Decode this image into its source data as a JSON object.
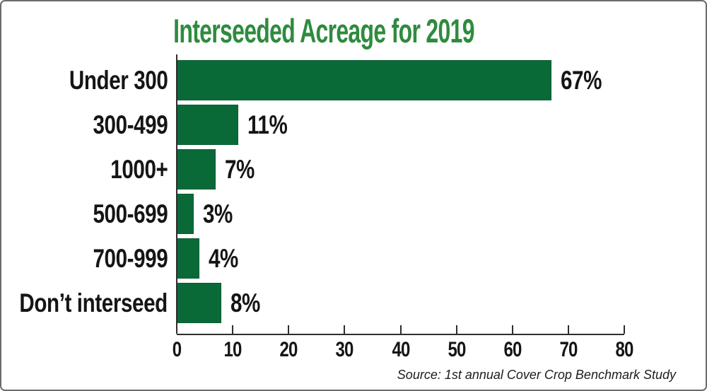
{
  "frame": {
    "background": "#ffffff",
    "border_color": "#6b6b6b"
  },
  "chart_data": {
    "type": "bar",
    "orientation": "horizontal",
    "title": "Interseeded Acreage for 2019",
    "title_color": "#2e8b3e",
    "bar_color": "#096a38",
    "categories": [
      "Under 300",
      "300-499",
      "1000+",
      "500-699",
      "700-999",
      "Don’t interseed"
    ],
    "values": [
      67,
      11,
      7,
      3,
      4,
      8
    ],
    "value_labels": [
      "67%",
      "11%",
      "7%",
      "3%",
      "4%",
      "8%"
    ],
    "xlabel": "",
    "ylabel": "",
    "xlim": [
      0,
      80
    ],
    "x_ticks": [
      0,
      10,
      20,
      30,
      40,
      50,
      60,
      70,
      80
    ],
    "grid": false,
    "legend": "none",
    "source": "Source: 1st annual Cover Crop Benchmark Study"
  }
}
